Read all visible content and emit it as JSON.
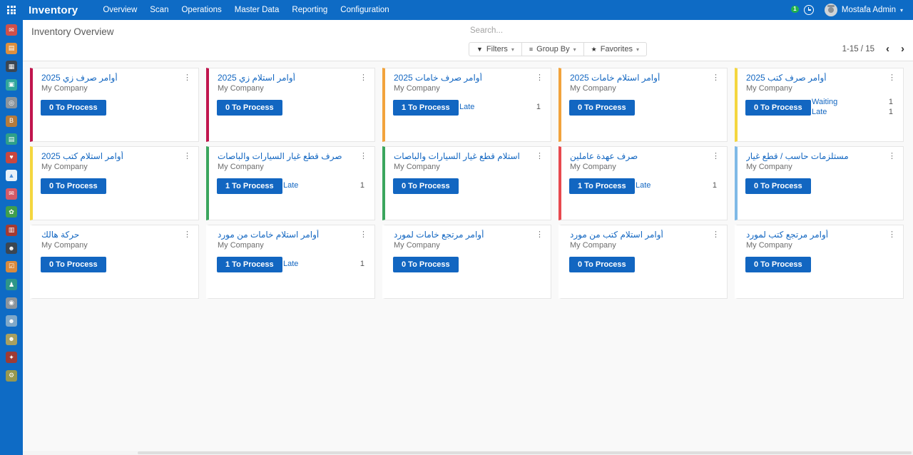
{
  "colors": {
    "topbar": "#0e6bc5",
    "primary": "#1266c1",
    "badge_green": "#21b24b"
  },
  "topbar": {
    "app_name": "Inventory",
    "menu": [
      "Overview",
      "Scan",
      "Operations",
      "Master Data",
      "Reporting",
      "Configuration"
    ],
    "messages_badge": "1",
    "user_name": "Mostafa Admin"
  },
  "sidebar": {
    "apps": [
      {
        "name": "discuss",
        "color": "#d0504a",
        "glyph": "✉"
      },
      {
        "name": "notes",
        "color": "#dd8f3d",
        "glyph": "▤"
      },
      {
        "name": "dashboards",
        "color": "#3b4652",
        "glyph": "▦"
      },
      {
        "name": "calendar",
        "color": "#31a79c",
        "glyph": "▣"
      },
      {
        "name": "appraisal",
        "color": "#8b949c",
        "glyph": "◎"
      },
      {
        "name": "brand-app",
        "color": "#b57b3c",
        "glyph": "B"
      },
      {
        "name": "documents",
        "color": "#2fa089",
        "glyph": "▤"
      },
      {
        "name": "crm",
        "color": "#c9473f",
        "glyph": "♥"
      },
      {
        "name": "website",
        "color": "#e8f1f8",
        "glyph": "▲",
        "fg": "#4a90d9"
      },
      {
        "name": "livechat",
        "color": "#d45a67",
        "glyph": "✉"
      },
      {
        "name": "field-service",
        "color": "#3f9e4d",
        "glyph": "✿"
      },
      {
        "name": "purchase",
        "color": "#a53a32",
        "glyph": "▥"
      },
      {
        "name": "contacts",
        "color": "#3b4652",
        "glyph": "☻"
      },
      {
        "name": "todo",
        "color": "#d98a3d",
        "glyph": "☑"
      },
      {
        "name": "employees",
        "color": "#2e9688",
        "glyph": "♟"
      },
      {
        "name": "recruitment",
        "color": "#8b949c",
        "glyph": "◉"
      },
      {
        "name": "attendances",
        "color": "#7fa8c9",
        "glyph": "☻"
      },
      {
        "name": "time-off",
        "color": "#a8a060",
        "glyph": "☻"
      },
      {
        "name": "expenses",
        "color": "#9e3b35",
        "glyph": "✦"
      },
      {
        "name": "settings",
        "color": "#97984f",
        "glyph": "⚙"
      }
    ]
  },
  "control_panel": {
    "title": "Inventory Overview",
    "search_placeholder": "Search...",
    "filters": "Filters",
    "group_by": "Group By",
    "favorites": "Favorites",
    "pager": "1-15 / 15"
  },
  "cards": [
    {
      "title": "أوامر صرف زي 2025",
      "company": "My Company",
      "action": "0 To Process",
      "accent": "#c0154d",
      "stats": []
    },
    {
      "title": "أوامر استلام زي 2025",
      "company": "My Company",
      "action": "0 To Process",
      "accent": "#c0154d",
      "stats": []
    },
    {
      "title": "أوامر صرف خامات 2025",
      "company": "My Company",
      "action": "1 To Process",
      "accent": "#f2a33c",
      "stats": [
        {
          "label": "Late",
          "value": "1"
        }
      ]
    },
    {
      "title": "أوامر استلام خامات 2025",
      "company": "My Company",
      "action": "0 To Process",
      "accent": "#f2a33c",
      "stats": []
    },
    {
      "title": "أوامر صرف كتب 2025",
      "company": "My Company",
      "action": "0 To Process",
      "accent": "#f4d63f",
      "stats": [
        {
          "label": "Waiting",
          "value": "1"
        },
        {
          "label": "Late",
          "value": "1"
        }
      ]
    },
    {
      "title": "أوامر استلام كتب 2025",
      "company": "My Company",
      "action": "0 To Process",
      "accent": "#f4d63f",
      "stats": []
    },
    {
      "title": "صرف قطع غيار السيارات والباصات",
      "company": "My Company",
      "action": "1 To Process",
      "accent": "#3aa55d",
      "stats": [
        {
          "label": "Late",
          "value": "1"
        }
      ]
    },
    {
      "title": "استلام قطع غيار السيارات والباصات",
      "company": "My Company",
      "action": "0 To Process",
      "accent": "#3aa55d",
      "stats": []
    },
    {
      "title": "صرف عهدة عاملين",
      "company": "My Company",
      "action": "1 To Process",
      "accent": "#e8494f",
      "stats": [
        {
          "label": "Late",
          "value": "1"
        }
      ]
    },
    {
      "title": "مستلزمات حاسب / قطع غيار",
      "company": "My Company",
      "action": "0 To Process",
      "accent": "#7fb9e6",
      "stats": []
    },
    {
      "title": "حركة هالك",
      "company": "My Company",
      "action": "0 To Process",
      "accent": "",
      "stats": []
    },
    {
      "title": "أوامر استلام خامات من مورد",
      "company": "My Company",
      "action": "1 To Process",
      "accent": "",
      "stats": [
        {
          "label": "Late",
          "value": "1"
        }
      ]
    },
    {
      "title": "أوامر مرتجع خامات لمورد",
      "company": "My Company",
      "action": "0 To Process",
      "accent": "",
      "stats": []
    },
    {
      "title": "أوامر استلام كتب من مورد",
      "company": "My Company",
      "action": "0 To Process",
      "accent": "",
      "stats": []
    },
    {
      "title": "أوامر مرتجع كتب لمورد",
      "company": "My Company",
      "action": "0 To Process",
      "accent": "",
      "stats": []
    }
  ]
}
